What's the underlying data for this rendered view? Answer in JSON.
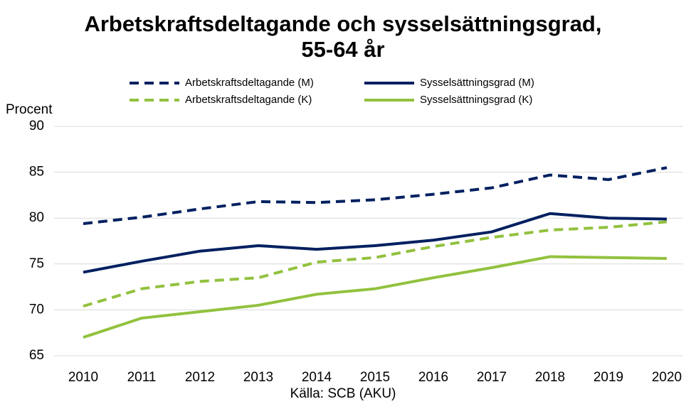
{
  "chart_data": {
    "type": "line",
    "title": "Arbetskraftsdeltagande och sysselsättningsgrad, 55-64 år",
    "y_label": "Procent",
    "source": "Källa: SCB (AKU)",
    "categories": [
      "2010",
      "2011",
      "2012",
      "2013",
      "2014",
      "2015",
      "2016",
      "2017",
      "2018",
      "2019",
      "2020"
    ],
    "series": [
      {
        "name": "Arbetskraftsdeltagande (M)",
        "color": "#002060",
        "dashed": true,
        "values": [
          79.4,
          80.1,
          81.0,
          81.8,
          81.7,
          82.0,
          82.6,
          83.3,
          84.7,
          84.2,
          85.5
        ]
      },
      {
        "name": "Sysselsättningsgrad (M)",
        "color": "#002060",
        "dashed": false,
        "values": [
          74.1,
          75.3,
          76.4,
          77.0,
          76.6,
          77.0,
          77.6,
          78.5,
          80.5,
          80.0,
          79.9
        ]
      },
      {
        "name": "Arbetskraftsdeltagande (K)",
        "color": "#92c13e",
        "dashed": true,
        "values": [
          70.4,
          72.3,
          73.1,
          73.5,
          75.2,
          75.7,
          76.9,
          77.9,
          78.7,
          79.0,
          79.6
        ]
      },
      {
        "name": "Sysselsättningsgrad (K)",
        "color": "#92c13e",
        "dashed": false,
        "values": [
          67.0,
          69.1,
          69.8,
          70.5,
          71.7,
          72.3,
          73.5,
          74.6,
          75.8,
          75.7,
          75.6
        ]
      }
    ],
    "ylim": [
      65,
      90
    ],
    "yticks": [
      65,
      70,
      75,
      80,
      85,
      90
    ],
    "grid": true
  }
}
